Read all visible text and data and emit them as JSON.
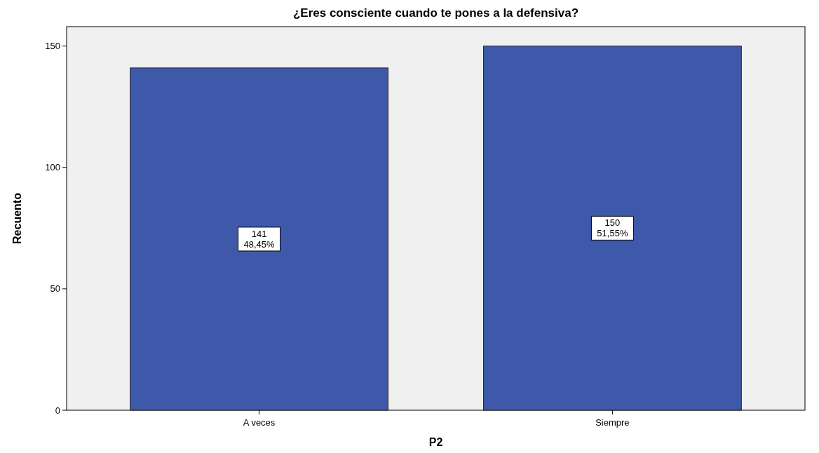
{
  "chart_data": {
    "type": "bar",
    "title": "¿Eres consciente cuando te pones a la defensiva?",
    "xlabel": "P2",
    "ylabel": "Recuento",
    "categories": [
      "A veces",
      "Siempre"
    ],
    "values": [
      141,
      150
    ],
    "color": "#3e59a9",
    "value_labels": [
      "141\n48,45%",
      "150\n51,55%"
    ],
    "ylim": [
      0,
      158
    ],
    "yticks": [
      0,
      50,
      100,
      150
    ],
    "grid": false
  }
}
